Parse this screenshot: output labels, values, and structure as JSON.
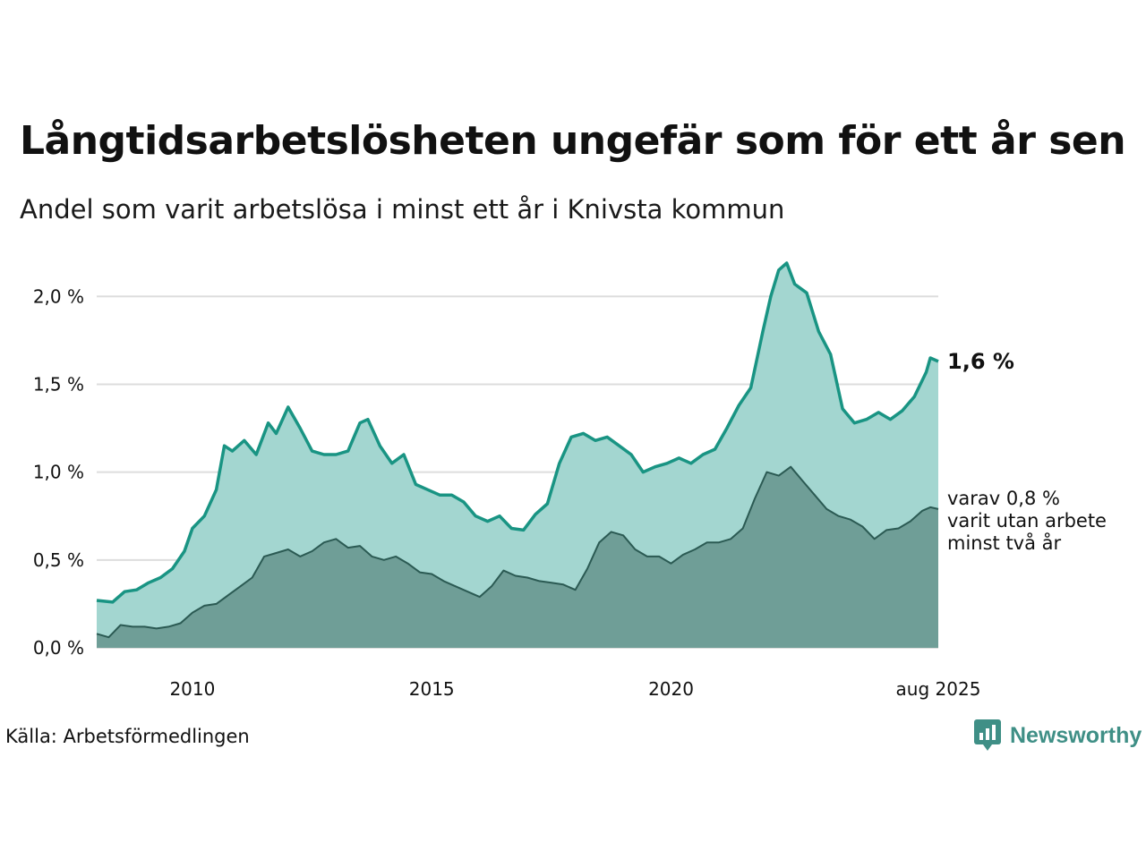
{
  "title": "Långtidsarbetslösheten ungefär som för ett år sen",
  "subtitle": "Andel som varit arbetslösa i minst ett år i Knivsta kommun",
  "source": "Källa: Arbetsförmedlingen",
  "brand": {
    "name": "Newsworthy",
    "icon": "newsworthy-logo-icon"
  },
  "colors": {
    "total_line": "#199483",
    "total_fill": "#a3d6d0",
    "sub_line": "#2b5a53",
    "sub_fill": "#6f9e97",
    "grid": "#dddddd"
  },
  "chart_data": {
    "type": "area",
    "title": "Långtidsarbetslösheten ungefär som för ett år sen",
    "subtitle": "Andel som varit arbetslösa i minst ett år i Knivsta kommun",
    "x_range": [
      "2008-01",
      "2025-08"
    ],
    "ylim": [
      0,
      2.2
    ],
    "yticks": [
      0,
      0.5,
      1.0,
      1.5,
      2.0
    ],
    "ytick_labels": [
      "0,0 %",
      "0,5 %",
      "1,0 %",
      "1,5 %",
      "2,0 %"
    ],
    "xticks": [
      "2010-01",
      "2015-01",
      "2020-01",
      "2025-08"
    ],
    "xtick_labels": [
      "2010",
      "2015",
      "2020",
      "aug 2025"
    ],
    "grid": true,
    "end_labels": {
      "total": "1,6 %",
      "sub": [
        "varav 0,8 %",
        "varit utan arbete",
        "minst två år"
      ]
    },
    "series": [
      {
        "key": "total",
        "points": [
          [
            "2008-01",
            0.27
          ],
          [
            "2008-05",
            0.26
          ],
          [
            "2008-08",
            0.32
          ],
          [
            "2008-11",
            0.33
          ],
          [
            "2009-02",
            0.37
          ],
          [
            "2009-05",
            0.4
          ],
          [
            "2009-08",
            0.45
          ],
          [
            "2009-11",
            0.55
          ],
          [
            "2010-01",
            0.68
          ],
          [
            "2010-04",
            0.75
          ],
          [
            "2010-07",
            0.9
          ],
          [
            "2010-09",
            1.15
          ],
          [
            "2010-11",
            1.12
          ],
          [
            "2011-02",
            1.18
          ],
          [
            "2011-05",
            1.1
          ],
          [
            "2011-08",
            1.28
          ],
          [
            "2011-10",
            1.22
          ],
          [
            "2012-01",
            1.37
          ],
          [
            "2012-04",
            1.25
          ],
          [
            "2012-07",
            1.12
          ],
          [
            "2012-10",
            1.1
          ],
          [
            "2013-01",
            1.1
          ],
          [
            "2013-04",
            1.12
          ],
          [
            "2013-07",
            1.28
          ],
          [
            "2013-09",
            1.3
          ],
          [
            "2013-12",
            1.15
          ],
          [
            "2014-03",
            1.05
          ],
          [
            "2014-06",
            1.1
          ],
          [
            "2014-09",
            0.93
          ],
          [
            "2014-12",
            0.9
          ],
          [
            "2015-03",
            0.87
          ],
          [
            "2015-06",
            0.87
          ],
          [
            "2015-09",
            0.83
          ],
          [
            "2015-12",
            0.75
          ],
          [
            "2016-03",
            0.72
          ],
          [
            "2016-06",
            0.75
          ],
          [
            "2016-09",
            0.68
          ],
          [
            "2016-12",
            0.67
          ],
          [
            "2017-03",
            0.76
          ],
          [
            "2017-06",
            0.82
          ],
          [
            "2017-09",
            1.05
          ],
          [
            "2017-12",
            1.2
          ],
          [
            "2018-03",
            1.22
          ],
          [
            "2018-06",
            1.18
          ],
          [
            "2018-09",
            1.2
          ],
          [
            "2018-12",
            1.15
          ],
          [
            "2019-03",
            1.1
          ],
          [
            "2019-06",
            1.0
          ],
          [
            "2019-09",
            1.03
          ],
          [
            "2019-12",
            1.05
          ],
          [
            "2020-03",
            1.08
          ],
          [
            "2020-06",
            1.05
          ],
          [
            "2020-09",
            1.1
          ],
          [
            "2020-12",
            1.13
          ],
          [
            "2021-03",
            1.25
          ],
          [
            "2021-06",
            1.38
          ],
          [
            "2021-09",
            1.48
          ],
          [
            "2021-12",
            1.8
          ],
          [
            "2022-02",
            2.0
          ],
          [
            "2022-04",
            2.15
          ],
          [
            "2022-06",
            2.19
          ],
          [
            "2022-08",
            2.07
          ],
          [
            "2022-11",
            2.02
          ],
          [
            "2023-02",
            1.8
          ],
          [
            "2023-05",
            1.67
          ],
          [
            "2023-08",
            1.36
          ],
          [
            "2023-11",
            1.28
          ],
          [
            "2024-02",
            1.3
          ],
          [
            "2024-05",
            1.34
          ],
          [
            "2024-08",
            1.3
          ],
          [
            "2024-11",
            1.35
          ],
          [
            "2025-02",
            1.43
          ],
          [
            "2025-05",
            1.57
          ],
          [
            "2025-06",
            1.65
          ],
          [
            "2025-08",
            1.63
          ]
        ]
      },
      {
        "key": "sub",
        "points": [
          [
            "2008-01",
            0.08
          ],
          [
            "2008-04",
            0.06
          ],
          [
            "2008-07",
            0.13
          ],
          [
            "2008-10",
            0.12
          ],
          [
            "2009-01",
            0.12
          ],
          [
            "2009-04",
            0.11
          ],
          [
            "2009-07",
            0.12
          ],
          [
            "2009-10",
            0.14
          ],
          [
            "2010-01",
            0.2
          ],
          [
            "2010-04",
            0.24
          ],
          [
            "2010-07",
            0.25
          ],
          [
            "2010-10",
            0.3
          ],
          [
            "2011-01",
            0.35
          ],
          [
            "2011-04",
            0.4
          ],
          [
            "2011-07",
            0.52
          ],
          [
            "2011-10",
            0.54
          ],
          [
            "2012-01",
            0.56
          ],
          [
            "2012-04",
            0.52
          ],
          [
            "2012-07",
            0.55
          ],
          [
            "2012-10",
            0.6
          ],
          [
            "2013-01",
            0.62
          ],
          [
            "2013-04",
            0.57
          ],
          [
            "2013-07",
            0.58
          ],
          [
            "2013-10",
            0.52
          ],
          [
            "2014-01",
            0.5
          ],
          [
            "2014-04",
            0.52
          ],
          [
            "2014-07",
            0.48
          ],
          [
            "2014-10",
            0.43
          ],
          [
            "2015-01",
            0.42
          ],
          [
            "2015-04",
            0.38
          ],
          [
            "2015-07",
            0.35
          ],
          [
            "2015-10",
            0.32
          ],
          [
            "2016-01",
            0.29
          ],
          [
            "2016-04",
            0.35
          ],
          [
            "2016-07",
            0.44
          ],
          [
            "2016-10",
            0.41
          ],
          [
            "2017-01",
            0.4
          ],
          [
            "2017-04",
            0.38
          ],
          [
            "2017-07",
            0.37
          ],
          [
            "2017-10",
            0.36
          ],
          [
            "2018-01",
            0.33
          ],
          [
            "2018-04",
            0.45
          ],
          [
            "2018-07",
            0.6
          ],
          [
            "2018-10",
            0.66
          ],
          [
            "2019-01",
            0.64
          ],
          [
            "2019-04",
            0.56
          ],
          [
            "2019-07",
            0.52
          ],
          [
            "2019-10",
            0.52
          ],
          [
            "2020-01",
            0.48
          ],
          [
            "2020-04",
            0.53
          ],
          [
            "2020-07",
            0.56
          ],
          [
            "2020-10",
            0.6
          ],
          [
            "2021-01",
            0.6
          ],
          [
            "2021-04",
            0.62
          ],
          [
            "2021-07",
            0.68
          ],
          [
            "2021-10",
            0.85
          ],
          [
            "2022-01",
            1.0
          ],
          [
            "2022-04",
            0.98
          ],
          [
            "2022-07",
            1.03
          ],
          [
            "2022-10",
            0.95
          ],
          [
            "2023-01",
            0.87
          ],
          [
            "2023-04",
            0.79
          ],
          [
            "2023-07",
            0.75
          ],
          [
            "2023-10",
            0.73
          ],
          [
            "2024-01",
            0.69
          ],
          [
            "2024-04",
            0.62
          ],
          [
            "2024-07",
            0.67
          ],
          [
            "2024-10",
            0.68
          ],
          [
            "2025-01",
            0.72
          ],
          [
            "2025-04",
            0.78
          ],
          [
            "2025-06",
            0.8
          ],
          [
            "2025-08",
            0.79
          ]
        ]
      }
    ]
  }
}
